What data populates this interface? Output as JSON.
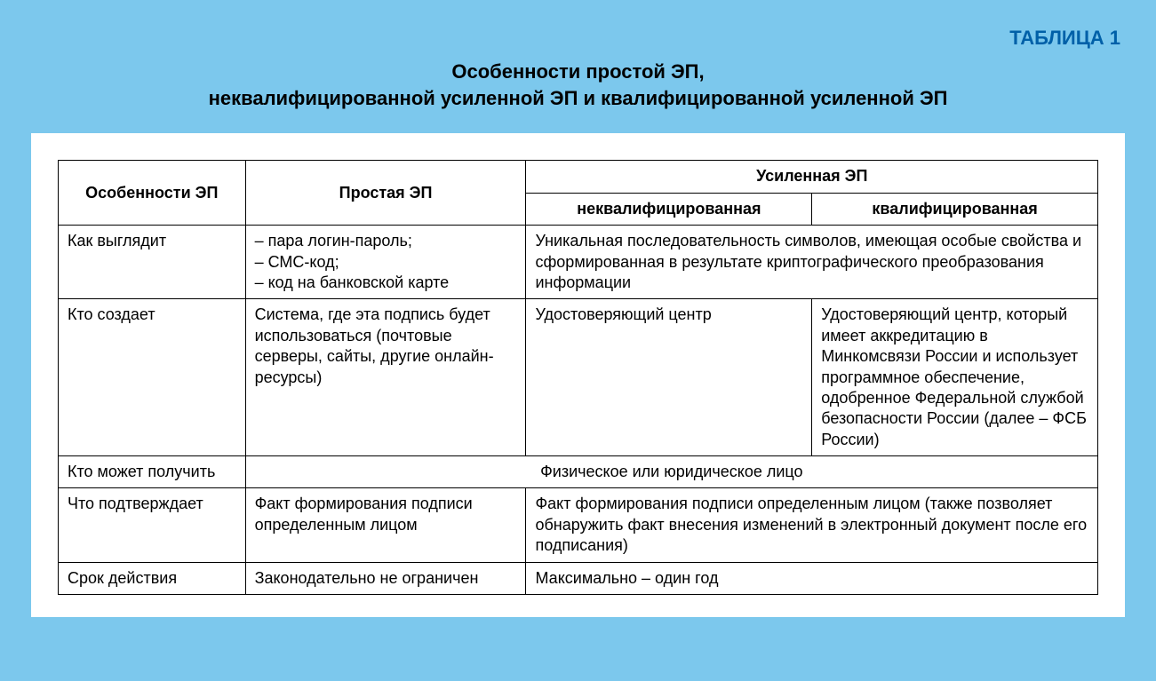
{
  "layout": {
    "background_color": "#7cc8ed",
    "container_color": "#ffffff",
    "label_color": "#0060a8",
    "text_color": "#000000",
    "border_color": "#000000",
    "font_family": "Arial",
    "title_fontsize": 22,
    "body_fontsize": 18
  },
  "table_label": "ТАБЛИЦА 1",
  "title_line1": "Особенности простой ЭП,",
  "title_line2": "неквалифицированной усиленной ЭП и квалифицированной усиленной ЭП",
  "table": {
    "type": "table",
    "column_widths": [
      "18%",
      "27%",
      "27.5%",
      "27.5%"
    ],
    "header": {
      "col0": "Особенности ЭП",
      "col1": "Простая ЭП",
      "col23_group": "Усиленная ЭП",
      "col2_sub": "неквалифицированная",
      "col3_sub": "квалифицированная"
    },
    "rows": {
      "r1": {
        "label": "Как выглядит",
        "simple": "– пара логин-пароль;\n– СМС-код;\n– код на банковской карте",
        "enhanced_merged": "Уникальная последовательность символов, имеющая особые свойства и сформированная в результате криптографического преобразования информации"
      },
      "r2": {
        "label": "Кто создает",
        "simple": "Система, где эта подпись будет использоваться (почтовые серверы, сайты, другие онлайн-ресурсы)",
        "unqualified": "Удостоверяющий центр",
        "qualified": "Удостоверяющий центр, который имеет аккредитацию в Минкомсвязи России и использует программное обеспечение, одобренное Федеральной службой безопасности России (далее – ФСБ России)"
      },
      "r3": {
        "label": "Кто может получить",
        "all_merged": "Физическое или юридическое лицо"
      },
      "r4": {
        "label": "Что подтверждает",
        "simple": "Факт формирования подписи определенным лицом",
        "enhanced_merged": "Факт формирования подписи определенным лицом (также позволяет обнаружить факт внесения изменений в электронный документ после его подписания)"
      },
      "r5": {
        "label": "Срок действия",
        "simple": "Законодательно не ограничен",
        "enhanced_merged": "Максимально – один год"
      }
    }
  }
}
